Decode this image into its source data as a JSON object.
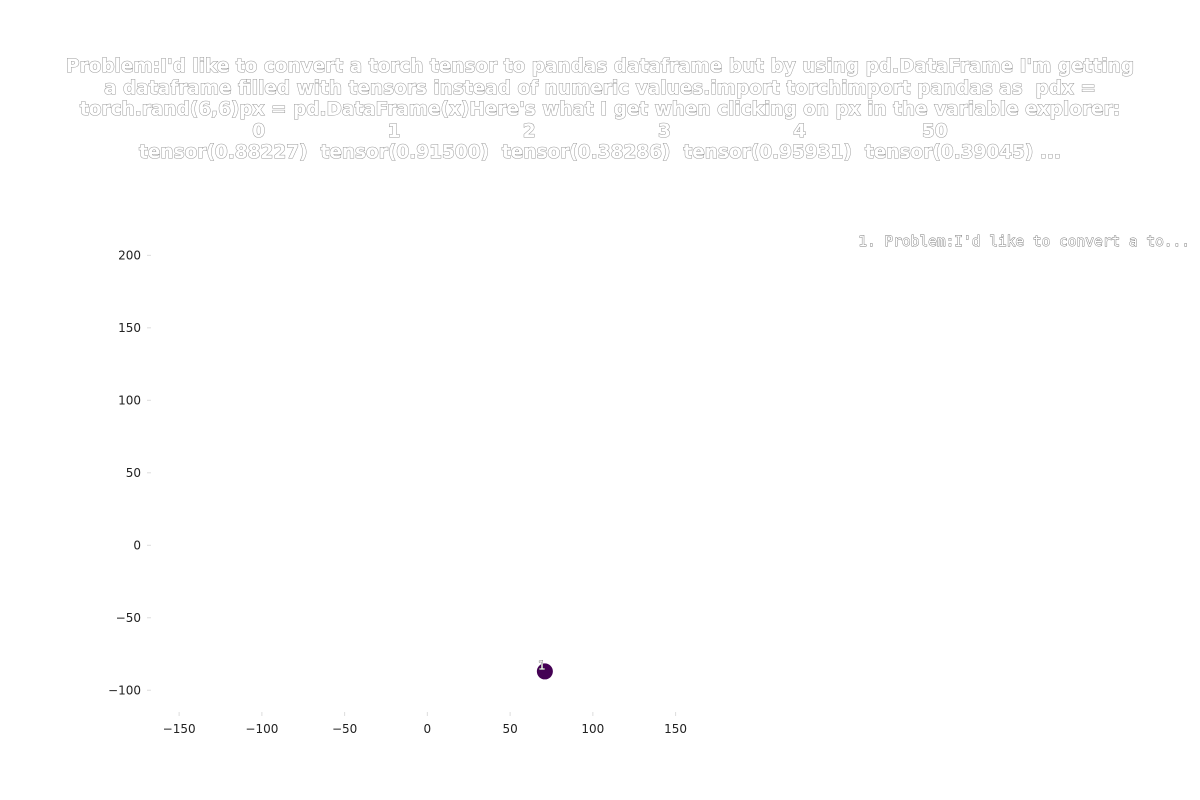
{
  "chart_data": {
    "type": "scatter",
    "title_lines": [
      "Problem:I'd like to convert a torch tensor to pandas dataframe but by using pd.DataFrame I'm getting",
      "a dataframe filled with tensors instead of numeric values.import torchimport pandas as  pdx =",
      "torch.rand(6,6)px = pd.DataFrame(x)Here's what I get when clicking on px in the variable explorer:",
      "0                   1                   2                   3                   4                  50",
      "tensor(0.88227)  tensor(0.91500)  tensor(0.38286)  tensor(0.95931)  tensor(0.39045) ..."
    ],
    "xlabel": "",
    "ylabel": "",
    "xlim": [
      -167,
      172
    ],
    "ylim": [
      -115,
      223
    ],
    "xticks": [
      -150,
      -100,
      -50,
      0,
      50,
      100,
      150
    ],
    "yticks": [
      -100,
      -50,
      0,
      50,
      100,
      150,
      200
    ],
    "xtick_labels": [
      "−150",
      "−100",
      "−50",
      "0",
      "50",
      "100",
      "150"
    ],
    "ytick_labels": [
      "−100",
      "−50",
      "0",
      "50",
      "100",
      "150",
      "200"
    ],
    "grid": false,
    "legend_position": "top-right",
    "legend_text": "1. Problem:I'd like to convert a to...",
    "points": [
      {
        "label": "1",
        "x": 71,
        "y": -87,
        "color": "#440154"
      }
    ]
  }
}
